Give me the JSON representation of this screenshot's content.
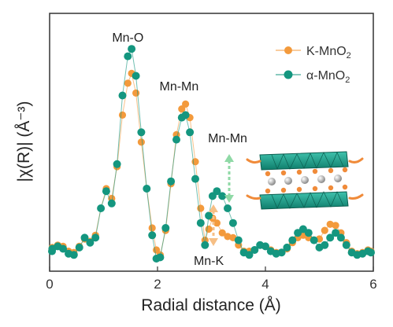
{
  "chart_data": {
    "type": "scatter",
    "title": "",
    "xlabel": "Radial distance (Å)",
    "ylabel": "|χ(R)| (Å⁻³)",
    "xlim": [
      0,
      6
    ],
    "ylim": [
      0,
      1
    ],
    "xticks": [
      "0",
      "2",
      "4",
      "6"
    ],
    "xtick_values": [
      0,
      2,
      4,
      6
    ],
    "yticks_visible": false,
    "grid": false,
    "legend_position": "top-right",
    "legend": [
      {
        "label_main": "K-MnO",
        "label_sub": "2",
        "color": "#f39a3c"
      },
      {
        "label_main": "α-MnO",
        "label_sub": "2",
        "color": "#14967f"
      }
    ],
    "annotations": [
      {
        "text": "Mn-O",
        "x": 1.45,
        "y": 0.93
      },
      {
        "text": "Mn-Mn",
        "x": 2.4,
        "y": 0.73
      },
      {
        "text": "Mn-Mn",
        "x": 3.3,
        "y": 0.52
      },
      {
        "text": "Mn-K",
        "x": 2.95,
        "y": 0.02
      }
    ],
    "series": [
      {
        "name": "K-MnO2",
        "color": "#f39a3c",
        "points": [
          [
            -0.05,
            0.08
          ],
          [
            0.05,
            0.09
          ],
          [
            0.15,
            0.1
          ],
          [
            0.25,
            0.095
          ],
          [
            0.35,
            0.075
          ],
          [
            0.45,
            0.07
          ],
          [
            0.55,
            0.095
          ],
          [
            0.65,
            0.125
          ],
          [
            0.75,
            0.115
          ],
          [
            0.85,
            0.14
          ],
          [
            0.95,
            0.25
          ],
          [
            1.05,
            0.33
          ],
          [
            1.15,
            0.29
          ],
          [
            1.25,
            0.42
          ],
          [
            1.35,
            0.63
          ],
          [
            1.45,
            0.76
          ],
          [
            1.52,
            0.8
          ],
          [
            1.6,
            0.72
          ],
          [
            1.7,
            0.52
          ],
          [
            1.8,
            0.33
          ],
          [
            1.9,
            0.17
          ],
          [
            1.98,
            0.08
          ],
          [
            2.05,
            0.06
          ],
          [
            2.15,
            0.16
          ],
          [
            2.25,
            0.35
          ],
          [
            2.35,
            0.55
          ],
          [
            2.45,
            0.655
          ],
          [
            2.52,
            0.675
          ],
          [
            2.6,
            0.62
          ],
          [
            2.7,
            0.44
          ],
          [
            2.8,
            0.25
          ],
          [
            2.88,
            0.12
          ],
          [
            2.95,
            0.165
          ],
          [
            3.02,
            0.21
          ],
          [
            3.1,
            0.19
          ],
          [
            3.2,
            0.15
          ],
          [
            3.3,
            0.135
          ],
          [
            3.4,
            0.13
          ],
          [
            3.5,
            0.1
          ],
          [
            3.6,
            0.075
          ],
          [
            3.7,
            0.075
          ],
          [
            3.8,
            0.08
          ],
          [
            3.9,
            0.1
          ],
          [
            4.0,
            0.095
          ],
          [
            4.1,
            0.08
          ],
          [
            4.2,
            0.07
          ],
          [
            4.3,
            0.07
          ],
          [
            4.4,
            0.085
          ],
          [
            4.5,
            0.11
          ],
          [
            4.6,
            0.13
          ],
          [
            4.7,
            0.14
          ],
          [
            4.8,
            0.13
          ],
          [
            4.9,
            0.12
          ],
          [
            5.0,
            0.125
          ],
          [
            5.1,
            0.16
          ],
          [
            5.2,
            0.185
          ],
          [
            5.3,
            0.18
          ],
          [
            5.4,
            0.15
          ],
          [
            5.5,
            0.11
          ],
          [
            5.6,
            0.075
          ],
          [
            5.7,
            0.065
          ],
          [
            5.8,
            0.07
          ],
          [
            5.9,
            0.08
          ],
          [
            6.0,
            0.075
          ]
        ]
      },
      {
        "name": "α-MnO2",
        "color": "#14967f",
        "points": [
          [
            -0.05,
            0.075
          ],
          [
            0.05,
            0.085
          ],
          [
            0.15,
            0.095
          ],
          [
            0.25,
            0.085
          ],
          [
            0.35,
            0.065
          ],
          [
            0.45,
            0.06
          ],
          [
            0.55,
            0.09
          ],
          [
            0.65,
            0.13
          ],
          [
            0.75,
            0.11
          ],
          [
            0.85,
            0.13
          ],
          [
            0.95,
            0.25
          ],
          [
            1.05,
            0.32
          ],
          [
            1.15,
            0.27
          ],
          [
            1.25,
            0.43
          ],
          [
            1.35,
            0.71
          ],
          [
            1.45,
            0.87
          ],
          [
            1.52,
            0.9
          ],
          [
            1.6,
            0.79
          ],
          [
            1.7,
            0.56
          ],
          [
            1.8,
            0.33
          ],
          [
            1.9,
            0.14
          ],
          [
            1.98,
            0.045
          ],
          [
            2.05,
            0.05
          ],
          [
            2.15,
            0.17
          ],
          [
            2.25,
            0.36
          ],
          [
            2.35,
            0.53
          ],
          [
            2.45,
            0.62
          ],
          [
            2.52,
            0.63
          ],
          [
            2.6,
            0.56
          ],
          [
            2.7,
            0.37
          ],
          [
            2.8,
            0.19
          ],
          [
            2.88,
            0.1
          ],
          [
            2.95,
            0.22
          ],
          [
            3.02,
            0.3
          ],
          [
            3.1,
            0.32
          ],
          [
            3.2,
            0.3
          ],
          [
            3.3,
            0.25
          ],
          [
            3.4,
            0.19
          ],
          [
            3.5,
            0.12
          ],
          [
            3.6,
            0.07
          ],
          [
            3.7,
            0.06
          ],
          [
            3.8,
            0.08
          ],
          [
            3.9,
            0.1
          ],
          [
            4.0,
            0.095
          ],
          [
            4.1,
            0.075
          ],
          [
            4.2,
            0.065
          ],
          [
            4.3,
            0.07
          ],
          [
            4.4,
            0.09
          ],
          [
            4.5,
            0.12
          ],
          [
            4.6,
            0.15
          ],
          [
            4.7,
            0.165
          ],
          [
            4.8,
            0.15
          ],
          [
            4.9,
            0.12
          ],
          [
            5.0,
            0.09
          ],
          [
            5.1,
            0.1
          ],
          [
            5.2,
            0.13
          ],
          [
            5.3,
            0.15
          ],
          [
            5.4,
            0.13
          ],
          [
            5.5,
            0.1
          ],
          [
            5.6,
            0.07
          ],
          [
            5.7,
            0.06
          ],
          [
            5.8,
            0.065
          ],
          [
            5.9,
            0.075
          ],
          [
            6.0,
            0.07
          ]
        ]
      }
    ]
  }
}
